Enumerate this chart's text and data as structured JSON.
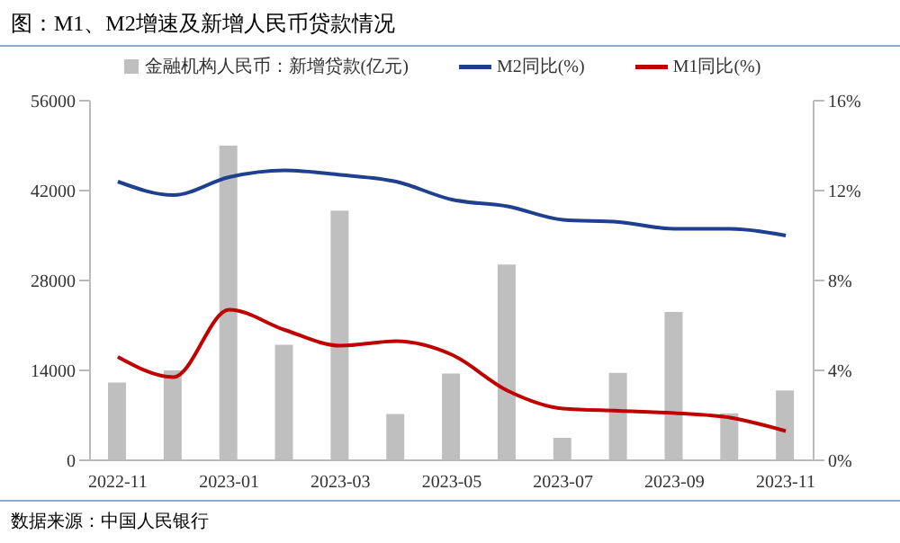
{
  "chart_data": {
    "type": "bar",
    "title": "图：M1、M2增速及新增人民币贷款情况",
    "categories": [
      "2022-11",
      null,
      "2023-01",
      null,
      "2023-03",
      null,
      "2023-05",
      null,
      "2023-07",
      null,
      "2023-09",
      null,
      "2023-11"
    ],
    "series": [
      {
        "name": "金融机构人民币：新增贷款(亿元)",
        "color": "#bfbfbf",
        "values": [
          12100,
          14000,
          49000,
          18000,
          38900,
          7200,
          13500,
          30500,
          3500,
          13600,
          23100,
          7300,
          10900
        ]
      },
      {
        "name": "M2同比(%)",
        "type": "line",
        "axis": "y2",
        "color": "#1f3f8f",
        "values": [
          12.4,
          11.8,
          12.6,
          12.9,
          12.7,
          12.4,
          11.6,
          11.3,
          10.7,
          10.6,
          10.3,
          10.3,
          10.0
        ]
      },
      {
        "name": "M1同比(%)",
        "type": "line",
        "axis": "y2",
        "color": "#c00000",
        "values": [
          4.6,
          3.7,
          6.7,
          5.8,
          5.1,
          5.3,
          4.7,
          3.1,
          2.3,
          2.2,
          2.1,
          1.9,
          1.3
        ]
      }
    ],
    "ylim": [
      0,
      56000
    ],
    "yticks": [
      0,
      14000,
      28000,
      42000,
      56000
    ],
    "y2lim": [
      0,
      16
    ],
    "y2ticks": [
      {
        "value": 0,
        "label": "0%"
      },
      {
        "value": 4,
        "label": "4%"
      },
      {
        "value": 8,
        "label": "8%"
      },
      {
        "value": 12,
        "label": "12%"
      },
      {
        "value": 16,
        "label": "16%"
      }
    ],
    "grid": false,
    "legend": "top",
    "marker": "none",
    "annotations": [
      "数据来源：中国人民银行"
    ]
  }
}
